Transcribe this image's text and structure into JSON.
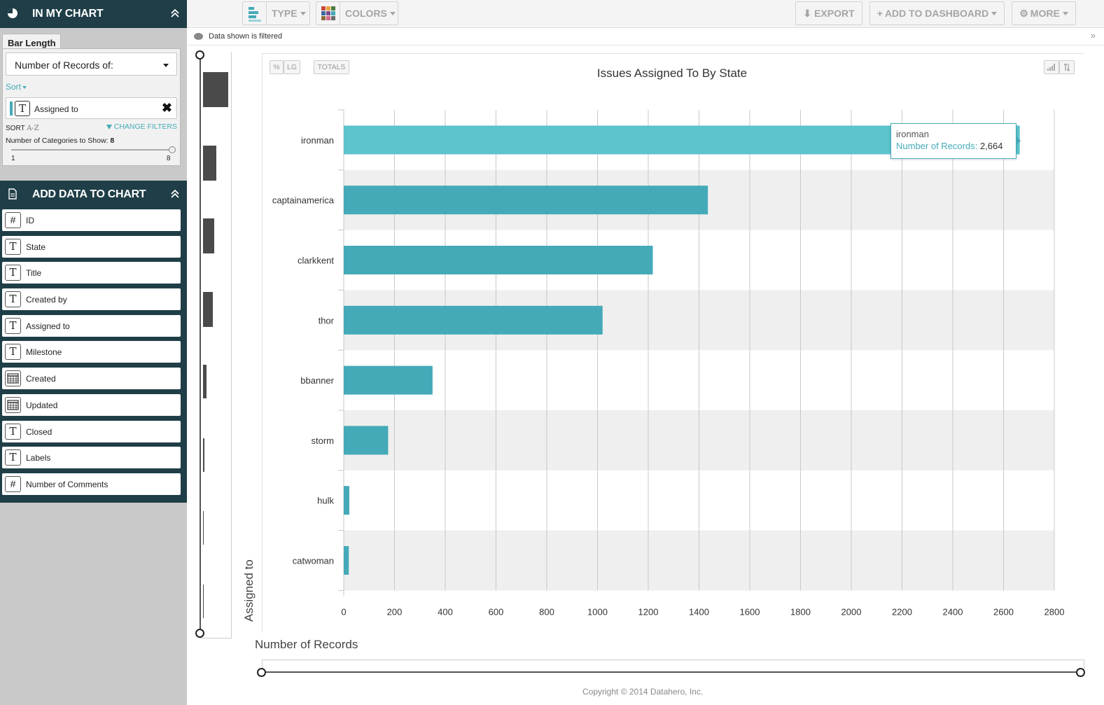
{
  "sidebar": {
    "in_my_chart": {
      "title": "IN MY CHART",
      "tab": "Bar Length",
      "measure": "Number of Records of:",
      "sort_link": "Sort",
      "dimension": "Assigned to",
      "sort_label": "SORT",
      "sort_az": "A-Z",
      "change_filters": "CHANGE FILTERS",
      "categories_label": "Number of Categories to Show:",
      "categories_value": "8",
      "slider_min": "1",
      "slider_max": "8"
    },
    "add_data": {
      "title": "ADD DATA TO CHART",
      "fields": [
        {
          "name": "ID",
          "type": "number",
          "glyph": "#"
        },
        {
          "name": "State",
          "type": "text",
          "glyph": "T"
        },
        {
          "name": "Title",
          "type": "text",
          "glyph": "T"
        },
        {
          "name": "Created by",
          "type": "text",
          "glyph": "T"
        },
        {
          "name": "Assigned to",
          "type": "text",
          "glyph": "T"
        },
        {
          "name": "Milestone",
          "type": "text",
          "glyph": "T"
        },
        {
          "name": "Created",
          "type": "date",
          "glyph": ""
        },
        {
          "name": "Updated",
          "type": "date",
          "glyph": ""
        },
        {
          "name": "Closed",
          "type": "text",
          "glyph": "T"
        },
        {
          "name": "Labels",
          "type": "text",
          "glyph": "T"
        },
        {
          "name": "Number of Comments",
          "type": "number",
          "glyph": "#"
        }
      ]
    }
  },
  "toolbar": {
    "type_label": "TYPE",
    "colors_label": "COLORS",
    "export_label": "EXPORT",
    "add_dashboard_label": "ADD TO DASHBOARD",
    "more_label": "MORE"
  },
  "filter_bar": {
    "text": "Data shown is filtered"
  },
  "chart_controls": {
    "percent": "%",
    "lg": "LG",
    "totals": "TOTALS"
  },
  "tooltip": {
    "name": "ironman",
    "measure": "Number of Records:",
    "value": "2,664"
  },
  "colors": {
    "bar": "#45aab8",
    "bar_highlight": "#5dc3cc",
    "sidebar_dark": "#1f3e47",
    "band": "#efefef"
  },
  "chart_data": {
    "type": "bar",
    "orientation": "horizontal",
    "title": "Issues Assigned To By State",
    "xlabel": "Number of Records",
    "ylabel": "Assigned to",
    "categories": [
      "ironman",
      "captainamerica",
      "clarkkent",
      "thor",
      "bbanner",
      "storm",
      "hulk",
      "catwoman"
    ],
    "values": [
      2664,
      1435,
      1218,
      1020,
      350,
      175,
      22,
      20
    ],
    "xlim": [
      0,
      2800
    ],
    "xticks": [
      0,
      200,
      400,
      600,
      800,
      1000,
      1200,
      1400,
      1600,
      1800,
      2000,
      2200,
      2400,
      2600,
      2800
    ],
    "grid": true,
    "highlighted": "ironman"
  },
  "footer": {
    "copyright": "Copyright © 2014 Datahero, Inc."
  }
}
